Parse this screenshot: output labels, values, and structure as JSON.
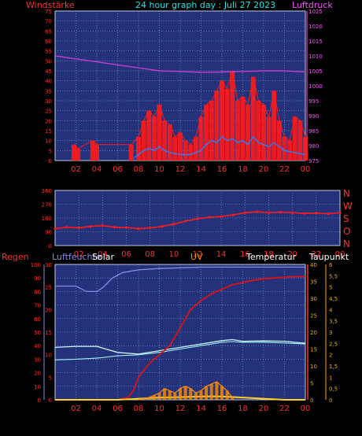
{
  "header": {
    "left": "Windstärke",
    "center": "24 hour graph day : Juli 27 2023",
    "right": "Luftdruck"
  },
  "panel2": {
    "compass": [
      "N",
      "W",
      "S",
      "O",
      "N"
    ]
  },
  "panel3": {
    "labels": {
      "regen": "Regen",
      "luftfeuchte": "Luftfeuchte",
      "solar": "Solar",
      "uv": "UV",
      "temperatur": "Temperatur",
      "taupunkt": "Taupunkt"
    }
  },
  "colors": {
    "background": "#000000",
    "plot": "#23327a",
    "grid": "#8ea0d8",
    "wind": "#ff1a1a",
    "gust": "#2a7cff",
    "pressure": "#c23ccf",
    "temperature": "#e01010",
    "humidity": "#8a8ae0",
    "dewpoint": "#a0f0ff",
    "solar": "#ffd020",
    "uv": "#ff8c00",
    "axis_left": "#ff3030",
    "axis_right": "#ff50ff",
    "axis_yellow": "#ffaa00"
  },
  "chart_data": [
    {
      "type": "line",
      "title": "24 hour graph day : Juli 27 2023",
      "xlabel": "",
      "x_ticks": [
        "02",
        "04",
        "06",
        "08",
        "10",
        "12",
        "14",
        "16",
        "18",
        "20",
        "22",
        "00"
      ],
      "y_left_label": "Windstärke",
      "y_left_ticks": [
        "0",
        "5",
        "10",
        "15",
        "20",
        "25",
        "30",
        "35",
        "40",
        "45",
        "50",
        "55",
        "60",
        "65",
        "70",
        "75"
      ],
      "ylim_left": [
        0,
        75
      ],
      "y_right_label": "Luftdruck",
      "y_right_ticks": [
        "975",
        "980",
        "985",
        "990",
        "995",
        "1000",
        "1005",
        "1010",
        "1015",
        "1020",
        "1025"
      ],
      "ylim_right": [
        975,
        1025
      ],
      "series": [
        {
          "axis": "right",
          "x": [
            0,
            2,
            4,
            6,
            8,
            10,
            12,
            14,
            16,
            18,
            20,
            22,
            24
          ],
          "values": [
            1010,
            1009,
            1008,
            1007,
            1006,
            1005,
            1004.8,
            1004.5,
            1004.6,
            1004.8,
            1005,
            1005,
            1004.6
          ]
        },
        {
          "axis": "left",
          "x": [
            1.8,
            2.2,
            3.6,
            4,
            7.3,
            8,
            8.5,
            9,
            9.5,
            10,
            10.5,
            11,
            11.5,
            12,
            12.5,
            13,
            13.5,
            14,
            14.5,
            15,
            15.5,
            16,
            16.5,
            17,
            17.5,
            18,
            18.5,
            19,
            19.5,
            20,
            20.5,
            21,
            21.5,
            22,
            22.5,
            23,
            23.5,
            24
          ],
          "values": [
            8,
            6,
            10,
            8,
            8,
            12,
            20,
            25,
            22,
            28,
            20,
            18,
            12,
            14,
            10,
            8,
            12,
            22,
            28,
            30,
            35,
            40,
            36,
            45,
            30,
            32,
            28,
            42,
            30,
            28,
            22,
            35,
            20,
            12,
            10,
            22,
            20,
            12
          ]
        },
        {
          "axis": "left",
          "x": [
            7.5,
            8,
            8.5,
            9,
            9.5,
            10,
            10.5,
            11,
            12,
            13,
            14,
            14.5,
            15,
            15.5,
            16,
            16.5,
            17,
            17.5,
            18,
            18.5,
            19,
            19.5,
            20,
            20.5,
            21,
            22,
            23,
            24
          ],
          "values": [
            1,
            3,
            5,
            6,
            5,
            7,
            5,
            4,
            3,
            3,
            5,
            8,
            10,
            9,
            12,
            10,
            11,
            9,
            10,
            8,
            12,
            9,
            8,
            7,
            9,
            5,
            4,
            3
          ]
        }
      ]
    },
    {
      "type": "scatter",
      "xlabel": "",
      "x_ticks": [
        "02",
        "04",
        "06",
        "08",
        "10",
        "12",
        "14",
        "16",
        "18",
        "20",
        "22",
        "00"
      ],
      "y_ticks": [
        "0",
        "90",
        "180",
        "270",
        "360"
      ],
      "ylim": [
        0,
        360
      ],
      "series": [
        {
          "x": [
            0,
            1,
            2,
            3,
            4,
            5,
            6,
            7,
            8,
            9,
            10,
            11,
            12,
            13,
            14,
            15,
            16,
            17,
            18,
            19,
            20,
            21,
            22,
            23,
            24
          ],
          "values": [
            110,
            120,
            115,
            125,
            130,
            120,
            118,
            110,
            115,
            125,
            140,
            160,
            175,
            185,
            190,
            200,
            215,
            220,
            215,
            218,
            215,
            210,
            212,
            208,
            215
          ]
        }
      ]
    },
    {
      "type": "line",
      "xlabel": "",
      "x_ticks": [
        "02",
        "04",
        "06",
        "08",
        "10",
        "12",
        "14",
        "16",
        "18",
        "20",
        "22",
        "00"
      ],
      "y_left_ticks": [
        "0",
        "10",
        "20",
        "30",
        "40",
        "50",
        "60",
        "70",
        "80",
        "90",
        "100"
      ],
      "ylim_left": [
        0,
        100
      ],
      "y_regen_ticks": [
        "0",
        "5",
        "10",
        "15",
        "20",
        "25",
        "30"
      ],
      "ylim_regen": [
        0,
        30
      ],
      "y_temp_ticks": [
        "0",
        "5",
        "10",
        "15",
        "20",
        "25",
        "30",
        "35",
        "40"
      ],
      "ylim_temp": [
        0,
        40
      ],
      "y_uv_ticks": [
        "0",
        "0,5",
        "1",
        "1,5",
        "2",
        "2,5",
        "3",
        "3,5",
        "4",
        "4,5",
        "5",
        "5,5",
        "6"
      ],
      "ylim_uv": [
        0,
        6
      ],
      "series": [
        {
          "axis": "left",
          "x": [
            0,
            2,
            3,
            4,
            4.6,
            5.5,
            6.5,
            8,
            10,
            12,
            14,
            16,
            18,
            20,
            22,
            24
          ],
          "values": [
            84,
            84,
            80,
            80,
            83,
            90,
            94,
            96,
            97,
            97.5,
            98,
            98,
            98,
            98,
            98,
            98
          ]
        },
        {
          "axis": "regen",
          "x": [
            0,
            6,
            7,
            7.5,
            8,
            9,
            10,
            11,
            12,
            13,
            14,
            15,
            16,
            17,
            18,
            19,
            20,
            21,
            22,
            23,
            24
          ],
          "values": [
            0,
            0,
            0.5,
            2,
            5,
            8,
            10,
            12,
            16,
            20,
            22,
            23.5,
            24.5,
            25.5,
            26,
            26.5,
            26.8,
            27,
            27.2,
            27.3,
            27.3
          ]
        },
        {
          "axis": "temp",
          "x": [
            0,
            2,
            4,
            6,
            8,
            10,
            12,
            14,
            16,
            17,
            18,
            20,
            22,
            24
          ],
          "values": [
            15.5,
            15.8,
            15.8,
            14,
            13.5,
            14.5,
            15.5,
            16.5,
            17.5,
            17.8,
            17.3,
            17.4,
            17.3,
            16.7
          ]
        },
        {
          "axis": "temp",
          "x": [
            0,
            2,
            4,
            6,
            8,
            10,
            12,
            14,
            16,
            17,
            18,
            20,
            22,
            24
          ],
          "values": [
            11.8,
            12,
            12.3,
            13,
            13.3,
            14,
            15,
            16,
            17,
            17.2,
            17,
            17,
            16.8,
            16.5
          ]
        },
        {
          "axis": "uv",
          "x": [
            8,
            9,
            9.5,
            10,
            10.5,
            11,
            11.5,
            12,
            12.5,
            13,
            13.5,
            14,
            14.5,
            15,
            15.5,
            16,
            16.5,
            17
          ],
          "values": [
            0,
            0.1,
            0.2,
            0.3,
            0.5,
            0.4,
            0.3,
            0.5,
            0.6,
            0.5,
            0.3,
            0.4,
            0.6,
            0.7,
            0.8,
            0.6,
            0.4,
            0.1
          ]
        },
        {
          "axis": "uv",
          "x": [
            0,
            6,
            8,
            10,
            12,
            14,
            16,
            18,
            20,
            22,
            24
          ],
          "values": [
            0,
            0,
            0.05,
            0.1,
            0.12,
            0.15,
            0.15,
            0.1,
            0.05,
            0,
            0
          ]
        }
      ]
    }
  ]
}
